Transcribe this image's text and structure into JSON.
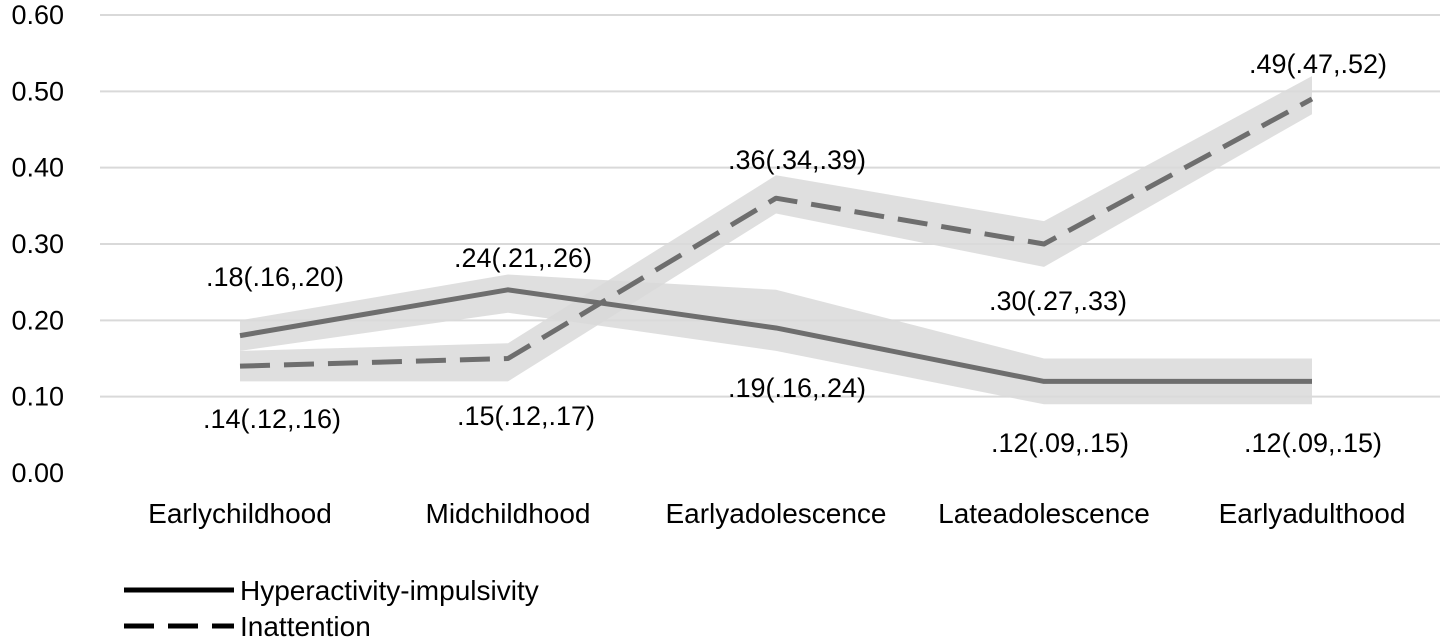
{
  "chart_data": {
    "type": "line",
    "categories": [
      "Earlychildhood",
      "Midchildhood",
      "Earlyadolescence",
      "Lateadolescence",
      "Earlyadulthood"
    ],
    "ylim": [
      0,
      0.6
    ],
    "yticks": [
      "0.00",
      "0.10",
      "0.20",
      "0.30",
      "0.40",
      "0.50",
      "0.60"
    ],
    "grid": true,
    "legend_position": "bottom-left",
    "series": [
      {
        "name": "Hyperactivity-impulsivity",
        "style": "solid",
        "color": "#6e6e6e",
        "values": [
          0.18,
          0.24,
          0.19,
          0.12,
          0.12
        ],
        "lower": [
          0.16,
          0.21,
          0.16,
          0.09,
          0.09
        ],
        "upper": [
          0.2,
          0.26,
          0.24,
          0.15,
          0.15
        ],
        "labels": [
          ".18(.16,.20)",
          ".24(.21,.26)",
          ".19(.16,.24)",
          ".12(.09,.15)",
          ".12(.09,.15)"
        ]
      },
      {
        "name": "Inattention",
        "style": "dashed",
        "color": "#6e6e6e",
        "values": [
          0.14,
          0.15,
          0.36,
          0.3,
          0.49
        ],
        "lower": [
          0.12,
          0.12,
          0.34,
          0.27,
          0.47
        ],
        "upper": [
          0.16,
          0.17,
          0.39,
          0.33,
          0.52
        ],
        "labels": [
          ".14(.12,.16)",
          ".15(.12,.17)",
          ".36(.34,.39)",
          ".30(.27,.33)",
          ".49(.47,.52)"
        ]
      }
    ],
    "band_color": "#d9d9d9"
  }
}
